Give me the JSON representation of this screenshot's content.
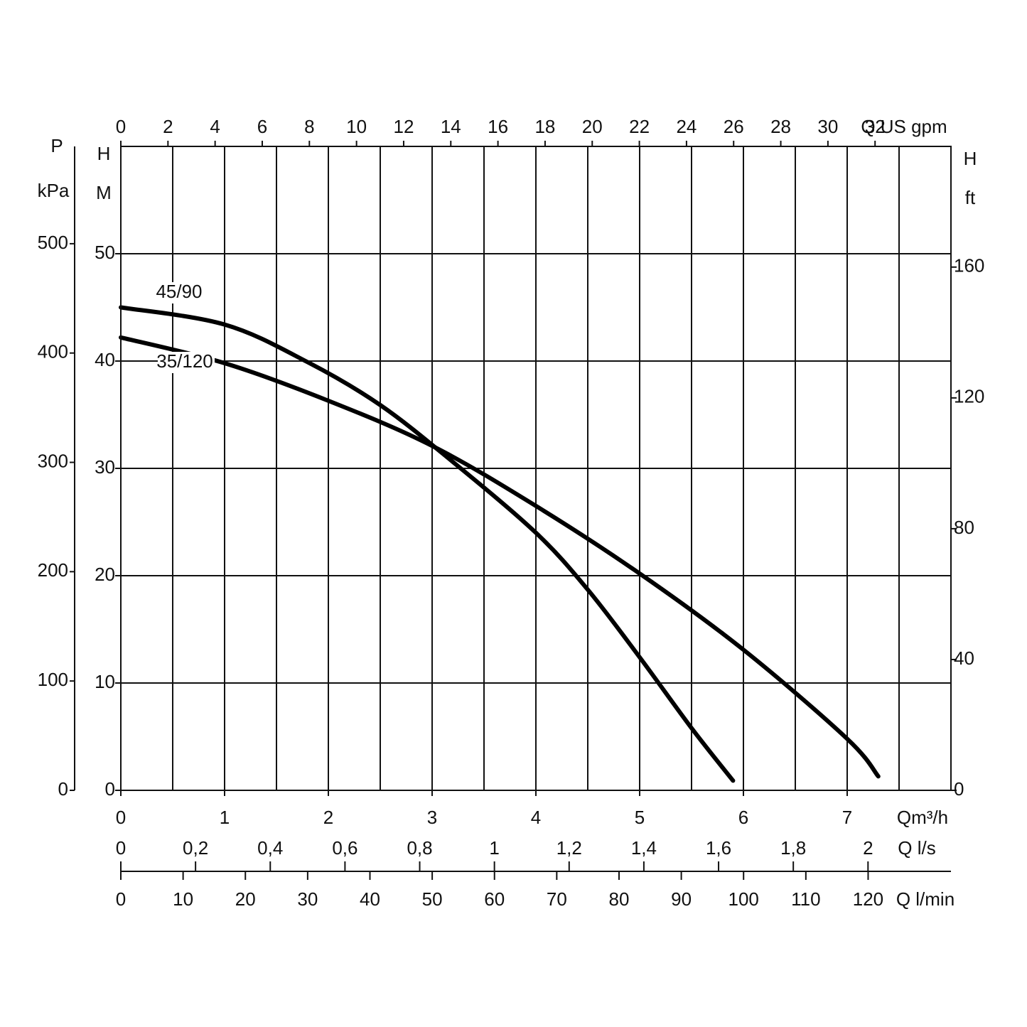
{
  "chart_data": {
    "type": "line",
    "x_label": "Qm³/h",
    "xlim": [
      0,
      8
    ],
    "xticks": [
      0,
      1,
      2,
      3,
      4,
      5,
      6,
      7
    ],
    "x_grid": [
      0,
      0.5,
      1,
      1.5,
      2,
      2.5,
      3,
      3.5,
      4,
      4.5,
      5,
      5.5,
      6,
      6.5,
      7,
      7.5,
      8
    ],
    "y_label": [
      "H",
      "M"
    ],
    "ylim": [
      0,
      60
    ],
    "yticks": [
      0,
      10,
      20,
      30,
      40,
      50
    ],
    "y_grid": [
      0,
      10,
      20,
      30,
      40,
      50,
      60
    ],
    "p_axis": {
      "label": [
        "P",
        "kPa"
      ],
      "lim": [
        0,
        589
      ],
      "ticks": [
        0,
        100,
        200,
        300,
        400,
        500
      ]
    },
    "ft_axis": {
      "label": [
        "H",
        "ft"
      ],
      "lim": [
        0,
        196.9
      ],
      "ticks": [
        0,
        40,
        80,
        120,
        160
      ]
    },
    "gpm_axis": {
      "label": "Q US gpm",
      "lim": [
        0,
        35.22
      ],
      "ticks": [
        0,
        2,
        4,
        6,
        8,
        10,
        12,
        14,
        16,
        18,
        20,
        22,
        24,
        26,
        28,
        30,
        32
      ]
    },
    "ls_axis": {
      "label": "Q l/s",
      "lim": [
        0,
        2.222
      ],
      "ticks": [
        0,
        {
          "value": 0.2,
          "label": "0,2"
        },
        {
          "value": 0.4,
          "label": "0,4"
        },
        {
          "value": 0.6,
          "label": "0,6"
        },
        {
          "value": 0.8,
          "label": "0,8"
        },
        1,
        {
          "value": 1.2,
          "label": "1,2"
        },
        {
          "value": 1.4,
          "label": "1,4"
        },
        {
          "value": 1.6,
          "label": "1,6"
        },
        {
          "value": 1.8,
          "label": "1,8"
        },
        2
      ]
    },
    "lmin_axis": {
      "label": "Q l/min",
      "lim": [
        0,
        133.3
      ],
      "ticks": [
        0,
        10,
        20,
        30,
        40,
        50,
        60,
        70,
        80,
        90,
        100,
        110,
        120
      ]
    },
    "series": [
      {
        "name": "45/90",
        "color": "#000000",
        "x": [
          0,
          1,
          1.8,
          2.5,
          3.2,
          4,
          4.5,
          5,
          5.5,
          5.9
        ],
        "values": [
          45.0,
          43.4,
          39.9,
          35.9,
          30.6,
          24.0,
          18.7,
          12.4,
          5.8,
          0.9
        ]
      },
      {
        "name": "35/120",
        "color": "#000000",
        "x": [
          0,
          1,
          2,
          3,
          4,
          5,
          6,
          7,
          7.3
        ],
        "values": [
          42.2,
          39.8,
          36.3,
          32.1,
          26.5,
          20.2,
          13.1,
          4.8,
          1.3
        ]
      }
    ]
  }
}
